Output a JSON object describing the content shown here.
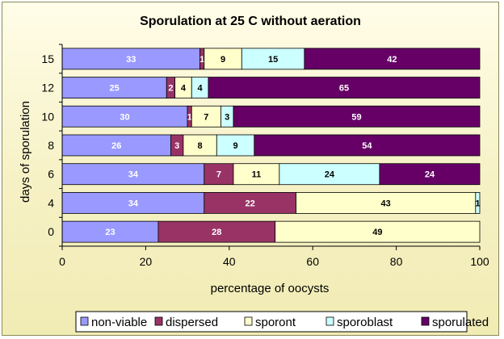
{
  "chart_data": {
    "type": "bar",
    "orientation": "horizontal",
    "stacked": true,
    "title": "Sporulation at 25 C without aeration",
    "xlabel": "percentage of oocysts",
    "ylabel": "days of sporulation",
    "xlim": [
      0,
      100
    ],
    "xticks": [
      0,
      20,
      40,
      60,
      80,
      100
    ],
    "grid": false,
    "legend_position": "bottom",
    "categories": [
      "0",
      "4",
      "6",
      "8",
      "10",
      "12",
      "15"
    ],
    "series": [
      {
        "name": "non-viable",
        "color": "#9999ff",
        "label_color": "#ffffff",
        "values": [
          23,
          34,
          34,
          26,
          30,
          25,
          33
        ]
      },
      {
        "name": "dispersed",
        "color": "#993366",
        "label_color": "#ffffff",
        "values": [
          28,
          22,
          7,
          3,
          1,
          2,
          1
        ]
      },
      {
        "name": "sporont",
        "color": "#ffffcc",
        "label_color": "#000000",
        "values": [
          49,
          43,
          11,
          8,
          7,
          4,
          9
        ]
      },
      {
        "name": "sporoblast",
        "color": "#ccffff",
        "label_color": "#000000",
        "values": [
          0,
          1,
          24,
          9,
          3,
          4,
          15
        ]
      },
      {
        "name": "sporulated",
        "color": "#660066",
        "label_color": "#ffffff",
        "values": [
          0,
          0,
          24,
          54,
          59,
          65,
          42
        ]
      }
    ]
  }
}
